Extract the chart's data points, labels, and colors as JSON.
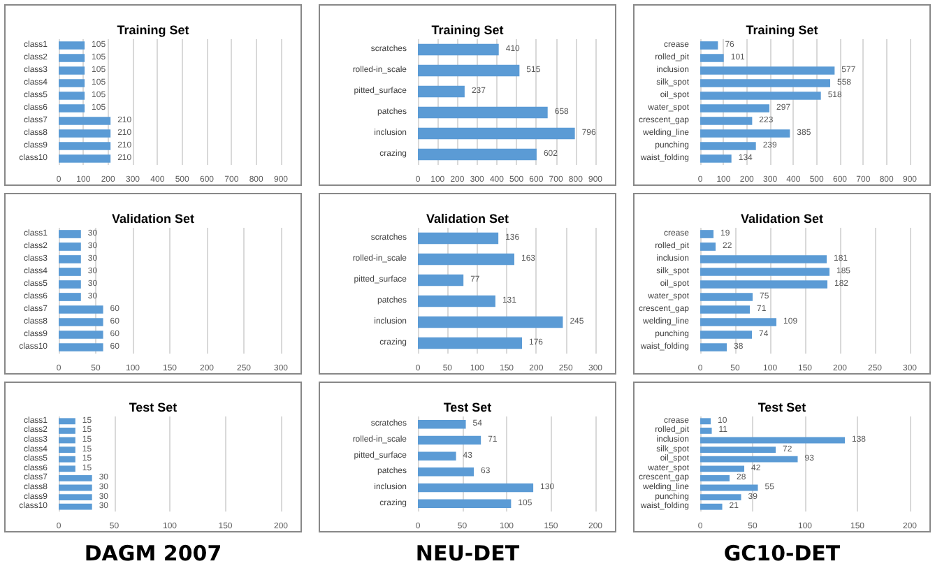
{
  "chart_data": [
    {
      "type": "bar",
      "orientation": "horizontal",
      "title": "Training Set",
      "categories": [
        "class1",
        "class2",
        "class3",
        "class4",
        "class5",
        "class6",
        "class7",
        "class8",
        "class9",
        "class10"
      ],
      "values": [
        105,
        105,
        105,
        105,
        105,
        105,
        210,
        210,
        210,
        210
      ],
      "color": "#5b9bd5",
      "xlim": [
        0,
        900
      ],
      "xticks": [
        0,
        100,
        200,
        300,
        400,
        500,
        600,
        700,
        800,
        900
      ],
      "grid": "x",
      "data_labels": true
    },
    {
      "type": "bar",
      "orientation": "horizontal",
      "title": "Training Set",
      "categories": [
        "scratches",
        "rolled-in_scale",
        "pitted_surface",
        "patches",
        "inclusion",
        "crazing"
      ],
      "values": [
        410,
        515,
        237,
        658,
        796,
        602
      ],
      "color": "#5b9bd5",
      "xlim": [
        0,
        900
      ],
      "xticks": [
        0,
        100,
        200,
        300,
        400,
        500,
        600,
        700,
        800,
        900
      ],
      "grid": "x",
      "data_labels": true
    },
    {
      "type": "bar",
      "orientation": "horizontal",
      "title": "Training Set",
      "categories": [
        "crease",
        "rolled_pit",
        "inclusion",
        "silk_spot",
        "oil_spot",
        "water_spot",
        "crescent_gap",
        "welding_line",
        "punching",
        "waist_folding"
      ],
      "values": [
        76,
        101,
        577,
        558,
        518,
        297,
        223,
        385,
        239,
        134
      ],
      "color": "#5b9bd5",
      "xlim": [
        0,
        900
      ],
      "xticks": [
        0,
        100,
        200,
        300,
        400,
        500,
        600,
        700,
        800,
        900
      ],
      "grid": "x",
      "data_labels": true
    },
    {
      "type": "bar",
      "orientation": "horizontal",
      "title": "Validation Set",
      "categories": [
        "class1",
        "class2",
        "class3",
        "class4",
        "class5",
        "class6",
        "class7",
        "class8",
        "class9",
        "class10"
      ],
      "values": [
        30,
        30,
        30,
        30,
        30,
        30,
        60,
        60,
        60,
        60
      ],
      "color": "#5b9bd5",
      "xlim": [
        0,
        300
      ],
      "xticks": [
        0,
        50,
        100,
        150,
        200,
        250,
        300
      ],
      "grid": "x",
      "data_labels": true
    },
    {
      "type": "bar",
      "orientation": "horizontal",
      "title": "Validation Set",
      "categories": [
        "scratches",
        "rolled-in_scale",
        "pitted_surface",
        "patches",
        "inclusion",
        "crazing"
      ],
      "values": [
        136,
        163,
        77,
        131,
        245,
        176
      ],
      "color": "#5b9bd5",
      "xlim": [
        0,
        300
      ],
      "xticks": [
        0,
        50,
        100,
        150,
        200,
        250,
        300
      ],
      "grid": "x",
      "data_labels": true
    },
    {
      "type": "bar",
      "orientation": "horizontal",
      "title": "Validation Set",
      "categories": [
        "crease",
        "rolled_pit",
        "inclusion",
        "silk_spot",
        "oil_spot",
        "water_spot",
        "crescent_gap",
        "welding_line",
        "punching",
        "waist_folding"
      ],
      "values": [
        19,
        22,
        181,
        185,
        182,
        75,
        71,
        109,
        74,
        38
      ],
      "color": "#5b9bd5",
      "xlim": [
        0,
        300
      ],
      "xticks": [
        0,
        50,
        100,
        150,
        200,
        250,
        300
      ],
      "grid": "x",
      "data_labels": true
    },
    {
      "type": "bar",
      "orientation": "horizontal",
      "title": "Test Set",
      "categories": [
        "class1",
        "class2",
        "class3",
        "class4",
        "class5",
        "class6",
        "class7",
        "class8",
        "class9",
        "class10"
      ],
      "values": [
        15,
        15,
        15,
        15,
        15,
        15,
        30,
        30,
        30,
        30
      ],
      "color": "#5b9bd5",
      "xlim": [
        0,
        200
      ],
      "xticks": [
        0,
        50,
        100,
        150,
        200
      ],
      "grid": "x",
      "data_labels": true,
      "annotations": [
        "DAGM 2007"
      ]
    },
    {
      "type": "bar",
      "orientation": "horizontal",
      "title": "Test Set",
      "categories": [
        "scratches",
        "rolled-in_scale",
        "pitted_surface",
        "patches",
        "inclusion",
        "crazing"
      ],
      "values": [
        54,
        71,
        43,
        63,
        130,
        105
      ],
      "color": "#5b9bd5",
      "xlim": [
        0,
        200
      ],
      "xticks": [
        0,
        50,
        100,
        150,
        200
      ],
      "grid": "x",
      "data_labels": true,
      "annotations": [
        "NEU-DET"
      ]
    },
    {
      "type": "bar",
      "orientation": "horizontal",
      "title": "Test Set",
      "categories": [
        "crease",
        "rolled_pit",
        "inclusion",
        "silk_spot",
        "oil_spot",
        "water_spot",
        "crescent_gap",
        "welding_line",
        "punching",
        "waist_folding"
      ],
      "values": [
        10,
        11,
        138,
        72,
        93,
        42,
        28,
        55,
        39,
        21
      ],
      "color": "#5b9bd5",
      "xlim": [
        0,
        200
      ],
      "xticks": [
        0,
        50,
        100,
        150,
        200
      ],
      "grid": "x",
      "data_labels": true,
      "annotations": [
        "GC10-DET"
      ]
    }
  ]
}
